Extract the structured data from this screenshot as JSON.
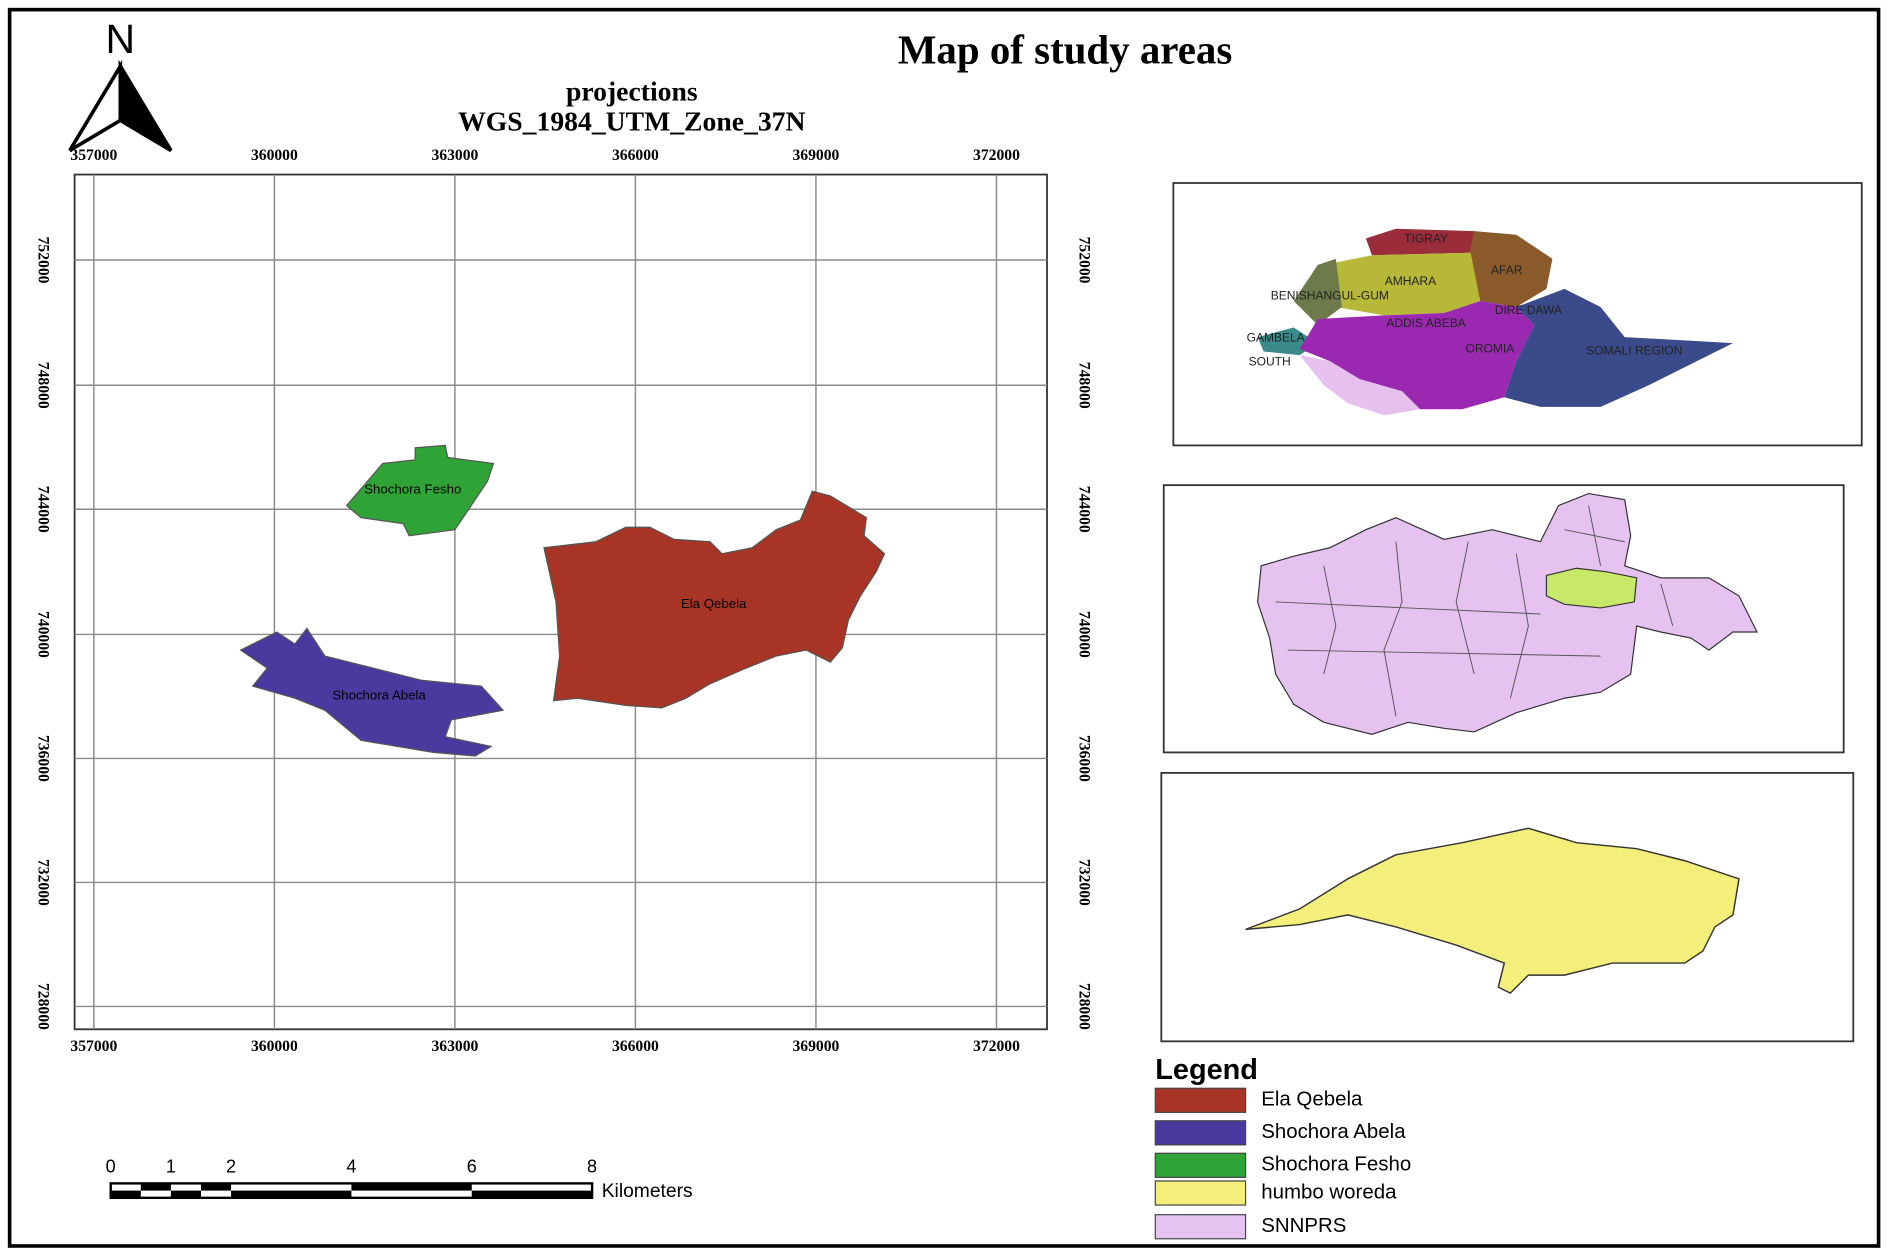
{
  "title": "Map of study areas",
  "north": "N",
  "projection": {
    "label": "projections",
    "name": "WGS_1984_UTM_Zone_37N"
  },
  "grid": {
    "x_labels": [
      "357000",
      "360000",
      "363000",
      "366000",
      "369000",
      "372000"
    ],
    "y_labels": [
      "752000",
      "748000",
      "744000",
      "740000",
      "736000",
      "732000",
      "728000"
    ]
  },
  "areas": [
    {
      "label": "Ela Qebela"
    },
    {
      "label": "Shochora Abela"
    },
    {
      "label": "Shochora Fesho"
    }
  ],
  "inset_regions": [
    "TIGRAY",
    "AFAR",
    "AMHARA",
    "BENISHANGUL-GUM",
    "DIRE DAWA",
    "ADDIS ABEBA",
    "GAMBELA",
    "OROMIA",
    "SOMALI REGION",
    "SOUTH"
  ],
  "legend": {
    "title": "Legend",
    "items": [
      {
        "label": "Ela Qebela",
        "color": "#a83426"
      },
      {
        "label": "Shochora Abela",
        "color": "#4a3aa0"
      },
      {
        "label": "Shochora Fesho",
        "color": "#2fa336"
      },
      {
        "label": "humbo woreda",
        "color": "#f4ef7a"
      },
      {
        "label": "SNNPRS",
        "color": "#e6c2f0"
      }
    ]
  },
  "scale_bar": {
    "ticks": [
      "0",
      "1",
      "2",
      "4",
      "6",
      "8"
    ],
    "unit": "Kilometers"
  }
}
